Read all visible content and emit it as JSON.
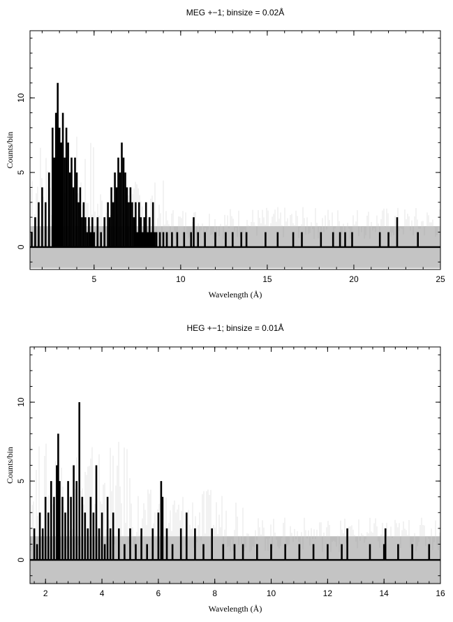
{
  "chart_data": [
    {
      "type": "line",
      "title": "MEG +−1; binsize = 0.02Å",
      "xlabel": "Wavelength (Å)",
      "ylabel": "Counts/bin",
      "xlim": [
        1.3,
        25
      ],
      "ylim": [
        -1.5,
        14.5
      ],
      "xticks": [
        5,
        10,
        15,
        20,
        25
      ],
      "xtick_labels": [
        "5",
        "10",
        "15",
        "20",
        "25"
      ],
      "yticks": [
        0,
        5,
        10
      ],
      "ytick_labels": [
        "0",
        "5",
        "10"
      ],
      "band": {
        "lower": -1.4,
        "upper": 1.4
      },
      "series": [
        {
          "x": [
            1.4,
            1.6,
            1.8,
            2.0,
            2.2,
            2.4,
            2.6,
            2.7,
            2.8,
            2.9,
            3.0,
            3.1,
            3.2,
            3.3,
            3.4,
            3.5,
            3.6,
            3.7,
            3.8,
            3.9,
            4.0,
            4.1,
            4.2,
            4.3,
            4.4,
            4.5,
            4.6,
            4.7,
            4.8,
            4.9,
            5.0,
            5.2,
            5.4,
            5.6,
            5.8,
            5.9,
            6.0,
            6.1,
            6.2,
            6.3,
            6.4,
            6.5,
            6.6,
            6.7,
            6.8,
            6.9,
            7.0,
            7.1,
            7.2,
            7.3,
            7.4,
            7.5,
            7.6,
            7.7,
            7.8,
            7.9,
            8.0,
            8.1,
            8.2,
            8.3,
            8.4,
            8.5,
            8.6,
            8.8,
            9.0,
            9.2,
            9.5,
            9.8,
            10.2,
            10.6,
            10.75,
            11.0,
            11.4,
            12.0,
            12.6,
            13.0,
            13.5,
            13.8,
            14.9,
            15.6,
            16.5,
            17.0,
            18.1,
            18.8,
            19.2,
            19.5,
            19.9,
            21.5,
            22.0,
            22.5,
            23.7
          ],
          "values": [
            1,
            2,
            3,
            4,
            3,
            5,
            8,
            6,
            9,
            11,
            8,
            7,
            9,
            6,
            8,
            7,
            5,
            6,
            4,
            6,
            5,
            3,
            4,
            2,
            3,
            2,
            1,
            2,
            1,
            2,
            1,
            2,
            1,
            2,
            3,
            2,
            4,
            3,
            5,
            4,
            6,
            5,
            7,
            6,
            5,
            4,
            3,
            4,
            3,
            2,
            3,
            1,
            3,
            2,
            1,
            2,
            3,
            1,
            2,
            1,
            3,
            1,
            1,
            1,
            1,
            1,
            1,
            1,
            1,
            1,
            2,
            1,
            1,
            1,
            1,
            1,
            1,
            1,
            1,
            1,
            1,
            1,
            1,
            1,
            1,
            1,
            1,
            1,
            1,
            2,
            1
          ]
        }
      ]
    },
    {
      "type": "line",
      "title": "HEG +−1; binsize = 0.01Å",
      "xlabel": "Wavelength (Å)",
      "ylabel": "Counts/bin",
      "xlim": [
        1.45,
        16
      ],
      "ylim": [
        -1.5,
        13.5
      ],
      "xticks": [
        2,
        4,
        6,
        8,
        10,
        12,
        14,
        16
      ],
      "xtick_labels": [
        "2",
        "4",
        "6",
        "8",
        "10",
        "12",
        "14",
        "16"
      ],
      "yticks": [
        0,
        5,
        10
      ],
      "ytick_labels": [
        "0",
        "5",
        "10"
      ],
      "band": {
        "lower": -1.5,
        "upper": 1.5
      },
      "series": [
        {
          "x": [
            1.6,
            1.7,
            1.8,
            1.9,
            2.0,
            2.1,
            2.2,
            2.3,
            2.4,
            2.45,
            2.5,
            2.6,
            2.7,
            2.8,
            2.9,
            3.0,
            3.1,
            3.2,
            3.3,
            3.4,
            3.5,
            3.6,
            3.7,
            3.8,
            3.9,
            4.0,
            4.1,
            4.2,
            4.3,
            4.4,
            4.6,
            4.8,
            5.0,
            5.2,
            5.4,
            5.6,
            5.8,
            6.0,
            6.1,
            6.15,
            6.3,
            6.5,
            6.8,
            7.0,
            7.3,
            7.6,
            7.9,
            8.3,
            8.7,
            9.0,
            9.5,
            10.0,
            10.5,
            11.0,
            11.5,
            12.0,
            12.5,
            12.7,
            13.5,
            14.0,
            14.05,
            14.5,
            15.0,
            15.6
          ],
          "values": [
            2,
            1,
            3,
            2,
            4,
            3,
            5,
            4,
            6,
            8,
            5,
            4,
            3,
            5,
            4,
            6,
            5,
            10,
            4,
            3,
            2,
            4,
            3,
            6,
            2,
            3,
            1,
            4,
            2,
            3,
            2,
            1,
            2,
            1,
            2,
            1,
            2,
            3,
            5,
            4,
            2,
            1,
            2,
            3,
            2,
            1,
            2,
            1,
            1,
            1,
            1,
            1,
            1,
            1,
            1,
            1,
            1,
            2,
            1,
            1,
            2,
            1,
            1,
            1
          ]
        }
      ]
    }
  ]
}
